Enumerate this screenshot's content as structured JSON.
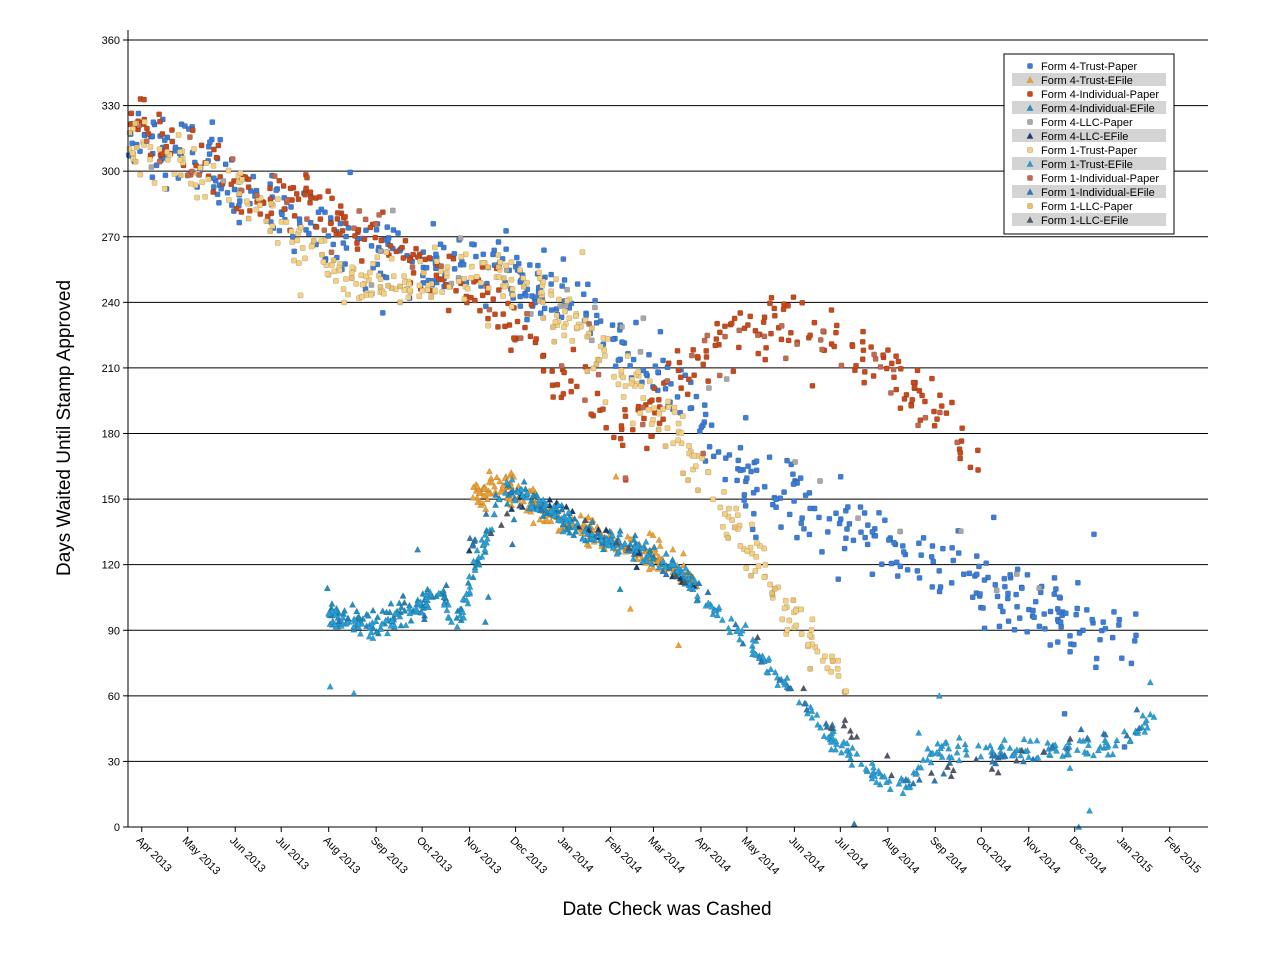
{
  "chart_data": {
    "type": "scatter",
    "title": "",
    "xlabel": "Date Check was Cashed",
    "ylabel": "Days Waited Until Stamp Approved",
    "ylim": [
      0,
      360
    ],
    "yticks": [
      0,
      30,
      60,
      90,
      120,
      150,
      180,
      210,
      240,
      270,
      300,
      330,
      360
    ],
    "x_range_days": [
      0,
      705
    ],
    "x_ticks": [
      {
        "label": "Apr 2013",
        "day": 9
      },
      {
        "label": "May 2013",
        "day": 39
      },
      {
        "label": "Jun 2013",
        "day": 70
      },
      {
        "label": "Jul 2013",
        "day": 100
      },
      {
        "label": "Aug 2013",
        "day": 131
      },
      {
        "label": "Sep 2013",
        "day": 162
      },
      {
        "label": "Oct 2013",
        "day": 192
      },
      {
        "label": "Nov 2013",
        "day": 223
      },
      {
        "label": "Dec 2013",
        "day": 253
      },
      {
        "label": "Jan 2014",
        "day": 284
      },
      {
        "label": "Feb 2014",
        "day": 315
      },
      {
        "label": "Mar 2014",
        "day": 343
      },
      {
        "label": "Apr 2014",
        "day": 374
      },
      {
        "label": "May 2014",
        "day": 404
      },
      {
        "label": "Jun 2014",
        "day": 435
      },
      {
        "label": "Jul 2014",
        "day": 465
      },
      {
        "label": "Aug 2014",
        "day": 496
      },
      {
        "label": "Sep 2014",
        "day": 527
      },
      {
        "label": "Oct 2014",
        "day": 557
      },
      {
        "label": "Nov 2014",
        "day": 588
      },
      {
        "label": "Dec 2014",
        "day": 618
      },
      {
        "label": "Jan 2015",
        "day": 649
      },
      {
        "label": "Feb 2015",
        "day": 680
      }
    ],
    "legend_position": "top-right",
    "series": [
      {
        "name": "Form 4-Trust-Paper",
        "marker": "square",
        "color": "#3b7dd8",
        "trend": [
          [
            0,
            315
          ],
          [
            40,
            305
          ],
          [
            80,
            290
          ],
          [
            120,
            275
          ],
          [
            160,
            262
          ],
          [
            200,
            255
          ],
          [
            240,
            255
          ],
          [
            270,
            245
          ],
          [
            300,
            235
          ],
          [
            330,
            215
          ],
          [
            360,
            195
          ],
          [
            400,
            160
          ],
          [
            440,
            148
          ],
          [
            480,
            135
          ],
          [
            520,
            122
          ],
          [
            560,
            110
          ],
          [
            600,
            98
          ],
          [
            640,
            85
          ],
          [
            658,
            80
          ]
        ],
        "spread": 16,
        "count": 520,
        "seed": 11
      },
      {
        "name": "Form 4-Trust-EFile",
        "marker": "triangle",
        "color": "#f0a030",
        "trend": [
          [
            225,
            150
          ],
          [
            240,
            158
          ],
          [
            260,
            150
          ],
          [
            280,
            140
          ],
          [
            300,
            135
          ],
          [
            320,
            130
          ],
          [
            345,
            125
          ],
          [
            360,
            120
          ],
          [
            372,
            110
          ]
        ],
        "spread": 7,
        "count": 220,
        "seed": 12
      },
      {
        "name": "Form 4-Individual-Paper",
        "marker": "square",
        "color": "#c84a1a",
        "trend": [
          [
            0,
            322
          ],
          [
            40,
            310
          ],
          [
            80,
            290
          ],
          [
            120,
            285
          ],
          [
            160,
            270
          ],
          [
            200,
            255
          ],
          [
            240,
            240
          ],
          [
            270,
            215
          ],
          [
            300,
            195
          ],
          [
            330,
            180
          ],
          [
            360,
            205
          ],
          [
            400,
            230
          ],
          [
            440,
            232
          ],
          [
            470,
            218
          ],
          [
            500,
            205
          ],
          [
            530,
            190
          ],
          [
            555,
            170
          ]
        ],
        "spread": 14,
        "count": 330,
        "seed": 13
      },
      {
        "name": "Form 4-Individual-EFile",
        "marker": "triangle",
        "color": "#1f8fc0",
        "trend": [
          [
            130,
            98
          ],
          [
            160,
            92
          ],
          [
            190,
            100
          ],
          [
            200,
            110
          ],
          [
            215,
            95
          ],
          [
            230,
            125
          ],
          [
            245,
            155
          ],
          [
            260,
            150
          ],
          [
            300,
            135
          ],
          [
            340,
            125
          ],
          [
            372,
            110
          ]
        ],
        "spread": 6,
        "count": 200,
        "seed": 14
      },
      {
        "name": "Form 4-LLC-Paper",
        "marker": "square",
        "color": "#a8a8a8",
        "trend": [
          [
            0,
            315
          ],
          [
            120,
            270
          ],
          [
            240,
            250
          ],
          [
            360,
            220
          ],
          [
            480,
            150
          ],
          [
            600,
            110
          ]
        ],
        "spread": 18,
        "count": 30,
        "seed": 15
      },
      {
        "name": "Form 4-LLC-EFile",
        "marker": "triangle",
        "color": "#1a3d6e",
        "trend": [
          [
            220,
            125
          ],
          [
            260,
            152
          ],
          [
            320,
            130
          ],
          [
            370,
            112
          ]
        ],
        "spread": 6,
        "count": 25,
        "seed": 16
      },
      {
        "name": "Form 1-Trust-Paper",
        "marker": "square",
        "color": "#f5d080",
        "trend": [
          [
            0,
            310
          ],
          [
            40,
            302
          ],
          [
            80,
            285
          ],
          [
            120,
            262
          ],
          [
            160,
            245
          ],
          [
            200,
            252
          ],
          [
            240,
            255
          ],
          [
            270,
            245
          ],
          [
            300,
            225
          ],
          [
            330,
            200
          ],
          [
            360,
            180
          ],
          [
            400,
            135
          ],
          [
            430,
            100
          ],
          [
            460,
            75
          ],
          [
            470,
            60
          ]
        ],
        "spread": 12,
        "count": 330,
        "seed": 17
      },
      {
        "name": "Form 1-Trust-EFile",
        "marker": "triangle",
        "color": "#2aa0d8",
        "trend": [
          [
            130,
            97
          ],
          [
            160,
            90
          ],
          [
            190,
            100
          ],
          [
            200,
            108
          ],
          [
            215,
            92
          ],
          [
            230,
            125
          ],
          [
            245,
            155
          ],
          [
            260,
            150
          ],
          [
            300,
            135
          ],
          [
            340,
            125
          ],
          [
            372,
            110
          ],
          [
            460,
            40
          ],
          [
            475,
            30
          ],
          [
            500,
            20
          ],
          [
            510,
            20
          ],
          [
            525,
            35
          ],
          [
            560,
            36
          ],
          [
            600,
            35
          ],
          [
            640,
            35
          ],
          [
            660,
            45
          ],
          [
            670,
            50
          ]
        ],
        "spread": 5,
        "count": 460,
        "seed": 18
      },
      {
        "name": "Form 1-Individual-Paper",
        "marker": "square",
        "color": "#c26a50",
        "trend": [
          [
            0,
            320
          ],
          [
            80,
            290
          ],
          [
            160,
            270
          ],
          [
            240,
            240
          ],
          [
            330,
            185
          ],
          [
            400,
            228
          ],
          [
            470,
            220
          ],
          [
            555,
            170
          ]
        ],
        "spread": 14,
        "count": 60,
        "seed": 19
      },
      {
        "name": "Form 1-Individual-EFile",
        "marker": "triangle",
        "color": "#2a7ab8",
        "trend": [
          [
            130,
            95
          ],
          [
            200,
            103
          ],
          [
            245,
            152
          ],
          [
            340,
            125
          ],
          [
            372,
            112
          ],
          [
            470,
            35
          ],
          [
            510,
            22
          ],
          [
            600,
            35
          ],
          [
            670,
            48
          ]
        ],
        "spread": 6,
        "count": 60,
        "seed": 20
      },
      {
        "name": "Form 1-LLC-Paper",
        "marker": "square",
        "color": "#e8c070",
        "trend": [
          [
            0,
            310
          ],
          [
            100,
            280
          ],
          [
            160,
            245
          ],
          [
            240,
            255
          ],
          [
            330,
            200
          ],
          [
            400,
            130
          ],
          [
            460,
            70
          ]
        ],
        "spread": 12,
        "count": 50,
        "seed": 21
      },
      {
        "name": "Form 1-LLC-EFile",
        "marker": "triangle",
        "color": "#505868",
        "trend": [
          [
            230,
            125
          ],
          [
            260,
            152
          ],
          [
            330,
            128
          ],
          [
            372,
            110
          ],
          [
            500,
            22
          ],
          [
            620,
            35
          ]
        ],
        "spread": 6,
        "count": 30,
        "seed": 22
      }
    ]
  }
}
